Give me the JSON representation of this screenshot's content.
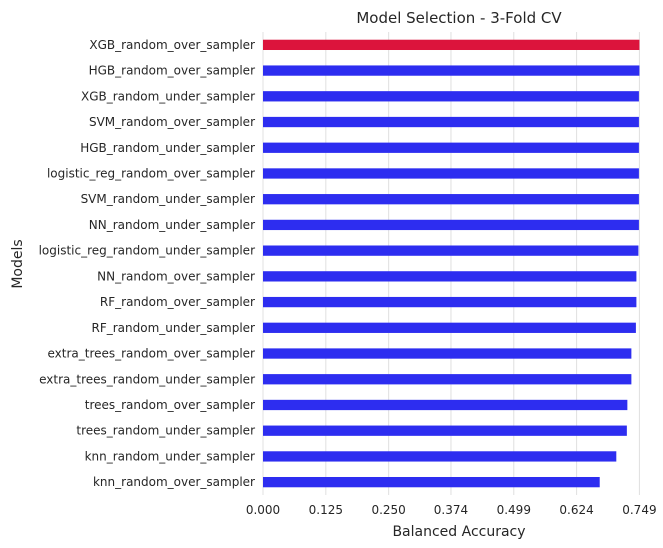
{
  "chart_data": {
    "type": "bar",
    "orientation": "horizontal",
    "title": "Model Selection - 3-Fold CV",
    "xlabel": "Balanced Accuracy",
    "ylabel": "Models",
    "xlim": [
      0,
      0.78
    ],
    "grid": "vertical",
    "x_ticks": [
      0.0,
      0.125,
      0.25,
      0.374,
      0.499,
      0.624,
      0.749
    ],
    "x_tick_labels": [
      "0.000",
      "0.125",
      "0.250",
      "0.374",
      "0.499",
      "0.624",
      "0.749"
    ],
    "categories": [
      "XGB_random_over_sampler",
      "HGB_random_over_sampler",
      "XGB_random_under_sampler",
      "SVM_random_over_sampler",
      "HGB_random_under_sampler",
      "logistic_reg_random_over_sampler",
      "SVM_random_under_sampler",
      "NN_random_under_sampler",
      "logistic_reg_random_under_sampler",
      "NN_random_over_sampler",
      "RF_random_over_sampler",
      "RF_random_under_sampler",
      "extra_trees_random_over_sampler",
      "extra_trees_random_under_sampler",
      "trees_random_over_sampler",
      "trees_random_under_sampler",
      "knn_random_under_sampler",
      "knn_random_over_sampler"
    ],
    "values": [
      0.749,
      0.749,
      0.748,
      0.748,
      0.748,
      0.748,
      0.748,
      0.748,
      0.747,
      0.743,
      0.743,
      0.742,
      0.733,
      0.733,
      0.725,
      0.724,
      0.703,
      0.67
    ],
    "highlight_index": 0,
    "colors": {
      "highlight": "#dc143c",
      "bar": "#2d2df0",
      "grid": "#e0e0e0",
      "text": "#262626"
    }
  }
}
